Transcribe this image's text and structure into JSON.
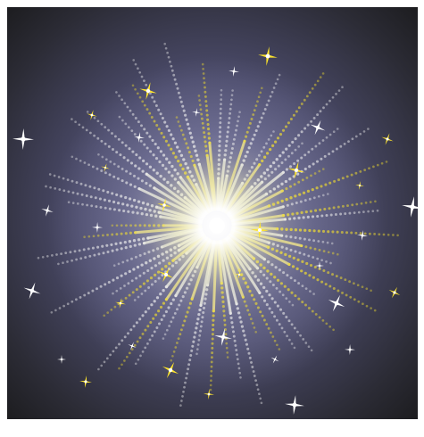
{
  "image": {
    "subject": "firework-burst",
    "colors": {
      "background_center": "#6a6a94",
      "background_mid": "#3f3f5a",
      "background_edge": "#1b1b1d",
      "glow_center": "#ffffff",
      "glow_mid": "#f3f0c0",
      "spark_white": "#eeeeee",
      "spark_yellow": "#f6e12c",
      "star_white": "#ffffff",
      "star_yellow": "#ffe52a"
    },
    "ray_count": 64,
    "star_count": 34
  }
}
